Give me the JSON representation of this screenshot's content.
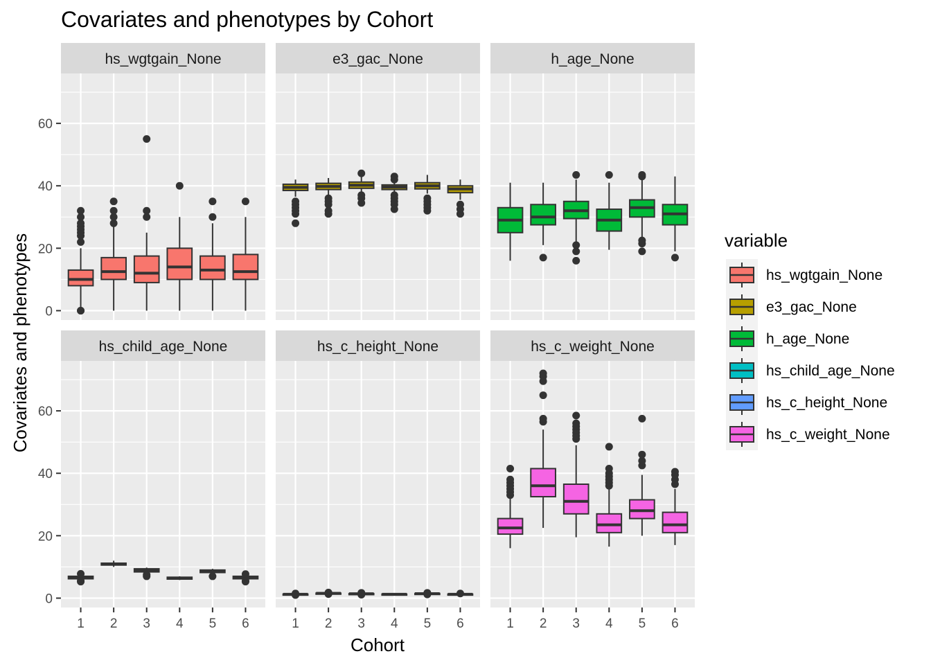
{
  "chart_data": {
    "type": "boxplot",
    "title": "Covariates and phenotypes by Cohort",
    "xlabel": "Cohort",
    "ylabel": "Covariates and phenotypes",
    "categories": [
      "1",
      "2",
      "3",
      "4",
      "5",
      "6"
    ],
    "ylim": [
      -3,
      76
    ],
    "yticks": [
      0,
      20,
      40,
      60
    ],
    "grid": true,
    "legend": {
      "title": "variable",
      "position": "right",
      "entries": [
        {
          "label": "hs_wgtgain_None",
          "color": "#F8766D"
        },
        {
          "label": "e3_gac_None",
          "color": "#B79F00"
        },
        {
          "label": "h_age_None",
          "color": "#00BA38"
        },
        {
          "label": "hs_child_age_None",
          "color": "#00BFC4"
        },
        {
          "label": "hs_c_height_None",
          "color": "#619CFF"
        },
        {
          "label": "hs_c_weight_None",
          "color": "#F564E3"
        }
      ]
    },
    "panels": [
      {
        "name": "hs_wgtgain_None",
        "color": "#F8766D",
        "boxes": [
          {
            "cohort": "1",
            "lower": 0,
            "q1": 8,
            "median": 10,
            "q3": 13,
            "upper": 20,
            "outliers": [
              0,
              0,
              22,
              24,
              25,
              26,
              27,
              28,
              30,
              32
            ]
          },
          {
            "cohort": "2",
            "lower": 0,
            "q1": 10,
            "median": 12.5,
            "q3": 17,
            "upper": 27,
            "outliers": [
              28,
              30,
              32,
              35
            ]
          },
          {
            "cohort": "3",
            "lower": 0,
            "q1": 9,
            "median": 12,
            "q3": 17.5,
            "upper": 25,
            "outliers": [
              30,
              32,
              55
            ]
          },
          {
            "cohort": "4",
            "lower": 0,
            "q1": 10,
            "median": 14,
            "q3": 20,
            "upper": 30,
            "outliers": [
              40
            ]
          },
          {
            "cohort": "5",
            "lower": 0,
            "q1": 10,
            "median": 13,
            "q3": 17.5,
            "upper": 28,
            "outliers": [
              30,
              35
            ]
          },
          {
            "cohort": "6",
            "lower": 0,
            "q1": 10,
            "median": 12.5,
            "q3": 18,
            "upper": 30,
            "outliers": [
              35
            ]
          }
        ]
      },
      {
        "name": "e3_gac_None",
        "color": "#B79F00",
        "boxes": [
          {
            "cohort": "1",
            "lower": 36.5,
            "q1": 38.5,
            "median": 39.5,
            "q3": 40.5,
            "upper": 42,
            "outliers": [
              28,
              31,
              32,
              33,
              34,
              35
            ]
          },
          {
            "cohort": "2",
            "lower": 37,
            "q1": 38.8,
            "median": 39.8,
            "q3": 40.8,
            "upper": 42.5,
            "outliers": [
              31,
              32,
              34,
              35,
              36
            ]
          },
          {
            "cohort": "3",
            "lower": 37.5,
            "q1": 39.2,
            "median": 40.2,
            "q3": 41.2,
            "upper": 43,
            "outliers": [
              34.5,
              36,
              37,
              44
            ]
          },
          {
            "cohort": "4",
            "lower": 37.5,
            "q1": 38.8,
            "median": 39.6,
            "q3": 40.3,
            "upper": 41.5,
            "outliers": [
              32.5,
              34,
              35,
              36,
              37,
              42,
              43
            ]
          },
          {
            "cohort": "5",
            "lower": 37.5,
            "q1": 39,
            "median": 40,
            "q3": 41,
            "upper": 43.5,
            "outliers": [
              32,
              33,
              34,
              35,
              36
            ]
          },
          {
            "cohort": "6",
            "lower": 35.5,
            "q1": 37.8,
            "median": 39,
            "q3": 40,
            "upper": 42,
            "outliers": [
              31,
              32.5,
              34
            ]
          }
        ]
      },
      {
        "name": "h_age_None",
        "color": "#00BA38",
        "boxes": [
          {
            "cohort": "1",
            "lower": 16,
            "q1": 25,
            "median": 29,
            "q3": 33,
            "upper": 41,
            "outliers": []
          },
          {
            "cohort": "2",
            "lower": 21,
            "q1": 27.5,
            "median": 30,
            "q3": 34,
            "upper": 41,
            "outliers": [
              17
            ]
          },
          {
            "cohort": "3",
            "lower": 22,
            "q1": 29.5,
            "median": 32,
            "q3": 35,
            "upper": 42,
            "outliers": [
              16,
              19,
              21,
              43.5
            ]
          },
          {
            "cohort": "4",
            "lower": 19.5,
            "q1": 25.5,
            "median": 29,
            "q3": 32.5,
            "upper": 41,
            "outliers": [
              43.5
            ]
          },
          {
            "cohort": "5",
            "lower": 23.5,
            "q1": 30,
            "median": 33,
            "q3": 35.5,
            "upper": 42,
            "outliers": [
              19,
              21.5,
              22.5,
              43,
              43.5
            ]
          },
          {
            "cohort": "6",
            "lower": 19,
            "q1": 27.5,
            "median": 31,
            "q3": 34,
            "upper": 43,
            "outliers": [
              17
            ]
          }
        ]
      },
      {
        "name": "hs_child_age_None",
        "color": "#00BFC4",
        "boxes": [
          {
            "cohort": "1",
            "lower": 5.8,
            "q1": 6.2,
            "median": 6.6,
            "q3": 7.0,
            "upper": 7.4,
            "outliers": [
              5.3,
              5.5,
              7.8
            ]
          },
          {
            "cohort": "2",
            "lower": 10,
            "q1": 10.6,
            "median": 10.9,
            "q3": 11.2,
            "upper": 12,
            "outliers": []
          },
          {
            "cohort": "3",
            "lower": 8.0,
            "q1": 8.4,
            "median": 8.9,
            "q3": 9.4,
            "upper": 9.8,
            "outliers": [
              7.0,
              7.5
            ]
          },
          {
            "cohort": "4",
            "lower": 5.8,
            "q1": 6.1,
            "median": 6.4,
            "q3": 6.7,
            "upper": 7.0,
            "outliers": []
          },
          {
            "cohort": "5",
            "lower": 7.8,
            "q1": 8.2,
            "median": 8.6,
            "q3": 9.0,
            "upper": 9.4,
            "outliers": [
              7.0
            ]
          },
          {
            "cohort": "6",
            "lower": 5.8,
            "q1": 6.2,
            "median": 6.6,
            "q3": 7.0,
            "upper": 7.5,
            "outliers": [
              5.3,
              5.5,
              7.7
            ]
          }
        ]
      },
      {
        "name": "hs_c_height_None",
        "color": "#619CFF",
        "boxes": [
          {
            "cohort": "1",
            "lower": 1.1,
            "q1": 1.2,
            "median": 1.25,
            "q3": 1.3,
            "upper": 1.4,
            "outliers": [
              1.0,
              1.5
            ]
          },
          {
            "cohort": "2",
            "lower": 1.4,
            "q1": 1.5,
            "median": 1.55,
            "q3": 1.6,
            "upper": 1.7,
            "outliers": [
              1.3,
              1.8
            ]
          },
          {
            "cohort": "3",
            "lower": 1.2,
            "q1": 1.3,
            "median": 1.4,
            "q3": 1.45,
            "upper": 1.6,
            "outliers": [
              1.1,
              1.7
            ]
          },
          {
            "cohort": "4",
            "lower": 1.1,
            "q1": 1.2,
            "median": 1.25,
            "q3": 1.3,
            "upper": 1.4,
            "outliers": []
          },
          {
            "cohort": "5",
            "lower": 1.3,
            "q1": 1.4,
            "median": 1.45,
            "q3": 1.5,
            "upper": 1.6,
            "outliers": [
              1.2,
              1.7
            ]
          },
          {
            "cohort": "6",
            "lower": 1.1,
            "q1": 1.2,
            "median": 1.25,
            "q3": 1.3,
            "upper": 1.4,
            "outliers": [
              1.5
            ]
          }
        ]
      },
      {
        "name": "hs_c_weight_None",
        "color": "#F564E3",
        "boxes": [
          {
            "cohort": "1",
            "lower": 16,
            "q1": 20.5,
            "median": 22.5,
            "q3": 25.5,
            "upper": 32.5,
            "outliers": [
              33,
              34,
              35,
              36,
              37,
              38,
              41.5
            ]
          },
          {
            "cohort": "2",
            "lower": 22.5,
            "q1": 32.5,
            "median": 36,
            "q3": 41.5,
            "upper": 54,
            "outliers": [
              56.5,
              57.5,
              65,
              69.5,
              71,
              72
            ]
          },
          {
            "cohort": "3",
            "lower": 19.5,
            "q1": 27,
            "median": 31,
            "q3": 36.5,
            "upper": 49,
            "outliers": [
              51,
              52,
              53,
              54,
              55,
              56,
              58.5
            ]
          },
          {
            "cohort": "4",
            "lower": 16.5,
            "q1": 21,
            "median": 23.5,
            "q3": 27,
            "upper": 35,
            "outliers": [
              36,
              37,
              38,
              39,
              40,
              41.5,
              48.5
            ]
          },
          {
            "cohort": "5",
            "lower": 20,
            "q1": 25.5,
            "median": 28,
            "q3": 31.5,
            "upper": 39.5,
            "outliers": [
              42.5,
              44,
              46,
              57.5
            ]
          },
          {
            "cohort": "6",
            "lower": 17,
            "q1": 21,
            "median": 23.5,
            "q3": 27.5,
            "upper": 35,
            "outliers": [
              36.5,
              38,
              39.5,
              40.5
            ]
          }
        ]
      }
    ]
  }
}
